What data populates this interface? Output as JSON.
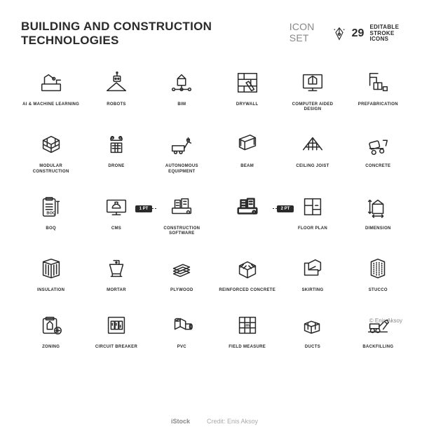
{
  "header": {
    "title_main": "BUILDING AND CONSTRUCTION TECHNOLOGIES",
    "title_sub": "ICON SET",
    "badge_count": "29",
    "badge_line1": "EDITABLE",
    "badge_line2": "STROKE ICONS"
  },
  "colors": {
    "stroke": "#2a2a2a",
    "bg": "#ffffff",
    "muted": "#888888"
  },
  "stroke_callout": {
    "left": "1 PT",
    "right": "2 PT"
  },
  "icons": [
    {
      "name": "ai-machine-learning",
      "label": "AI & MACHINE LEARNING"
    },
    {
      "name": "robots",
      "label": "ROBOTS"
    },
    {
      "name": "bim",
      "label": "BIM"
    },
    {
      "name": "drywall",
      "label": "DRYWALL"
    },
    {
      "name": "cad",
      "label": "COMPUTER AIDED DESIGN"
    },
    {
      "name": "prefabrication",
      "label": "PREFABRICATION"
    },
    {
      "name": "modular-construction",
      "label": "MODULAR CONSTRUCTION"
    },
    {
      "name": "drone",
      "label": "DRONE"
    },
    {
      "name": "autonomous-equipment",
      "label": "AUTONOMOUS EQUIPMENT"
    },
    {
      "name": "beam",
      "label": "BEAM"
    },
    {
      "name": "ceiling-joist",
      "label": "CEILING JOIST"
    },
    {
      "name": "concrete",
      "label": "CONCRETE"
    },
    {
      "name": "boq",
      "label": "BOQ"
    },
    {
      "name": "cms",
      "label": "CMS"
    },
    {
      "name": "construction-software",
      "label": "CONSTRUCTION\nSOFTWARE",
      "callout": true
    },
    {
      "name": "construction-software-2",
      "label": " "
    },
    {
      "name": "floor-plan",
      "label": "FLOOR PLAN"
    },
    {
      "name": "dimension",
      "label": "DIMENSION"
    },
    {
      "name": "insulation",
      "label": "INSULATION"
    },
    {
      "name": "mortar",
      "label": "MORTAR"
    },
    {
      "name": "plywood",
      "label": "PLYWOOD"
    },
    {
      "name": "reinforced-concrete",
      "label": "REINFORCED CONCRETE"
    },
    {
      "name": "skirting",
      "label": "SKIRTING"
    },
    {
      "name": "stucco",
      "label": "STUCCO"
    },
    {
      "name": "zoning",
      "label": "ZONING"
    },
    {
      "name": "circuit-breaker",
      "label": "CIRCUIT BREAKER"
    },
    {
      "name": "pvc",
      "label": "PVC"
    },
    {
      "name": "field-measure",
      "label": "FIELD MEASURE"
    },
    {
      "name": "ducts",
      "label": "DUCTS"
    },
    {
      "name": "backfilling",
      "label": "BACKFILLING"
    }
  ],
  "credit": "© Enis Aksoy",
  "watermark": {
    "brand": "iStock",
    "credit": "Credit: Enis Aksoy"
  }
}
